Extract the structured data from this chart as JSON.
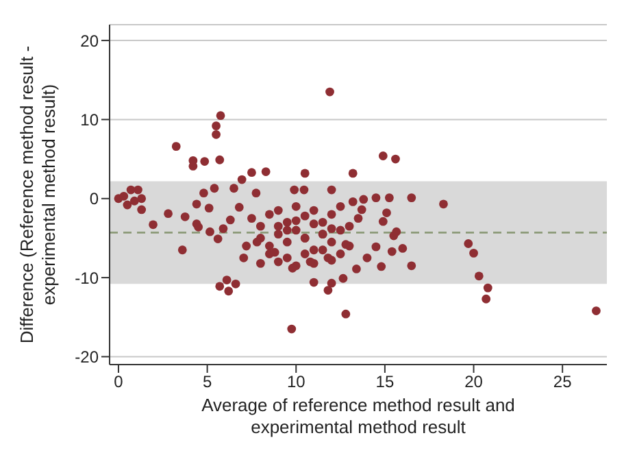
{
  "chart_data": {
    "type": "scatter",
    "xlabel": "Average of reference method result and experimental method result",
    "ylabel": "Difference (Reference method result - experimental method result)",
    "x": [
      11.9,
      5.75,
      5.5,
      5.5,
      3.25,
      4.2,
      4.2,
      4.85,
      5.7,
      7.5,
      8.3,
      10.5,
      13.2,
      6.95,
      6.5,
      5.4,
      4.8,
      14.9,
      15.6,
      0,
      0.7,
      1.1,
      1.3,
      1.3,
      0.5,
      0.9,
      0.3,
      2.8,
      1.95,
      3.75,
      4.4,
      5.1,
      4.4,
      4.5,
      5.15,
      5.6,
      3.6,
      5.7,
      6.1,
      6.2,
      6.6,
      9.75,
      12.8,
      7.75,
      5.9,
      6.3,
      6.8,
      7.05,
      8,
      11,
      11.8,
      12,
      12.65,
      13.4,
      9.9,
      10.45,
      12,
      13.2,
      14.5,
      15.25,
      16.5,
      18.3,
      19.7,
      20,
      20.3,
      20.8,
      20.7,
      26.9,
      16.5,
      14.8,
      16,
      15.4,
      15.1,
      14.9,
      15.5,
      15.65,
      14.5,
      14,
      13.7,
      13.8,
      7.5,
      8,
      8.5,
      9,
      9.5,
      10,
      10.5,
      11,
      11.5,
      12,
      12.5,
      13,
      8,
      8.5,
      9,
      9.5,
      10,
      10.5,
      11,
      11.5,
      12,
      12.5,
      13,
      8.5,
      9,
      9.5,
      10,
      10.5,
      11,
      11.5,
      12,
      12.5,
      9,
      9.5,
      10,
      10.5,
      11,
      11.5,
      12,
      7.2,
      7.8,
      8.8,
      9.8,
      10.8,
      11.8,
      12.8,
      13.5
    ],
    "values": [
      13.5,
      10.5,
      9.2,
      8.1,
      6.6,
      4.8,
      4.1,
      4.7,
      4.9,
      3.3,
      3.4,
      3.2,
      3.2,
      2.4,
      1.3,
      1.3,
      0.7,
      5.4,
      5,
      0,
      1.1,
      1.1,
      0,
      -1.4,
      -0.8,
      -0.3,
      0.3,
      -1.9,
      -3.3,
      -2.3,
      -0.7,
      -1.2,
      -3.2,
      -3.6,
      -4.2,
      -5.1,
      -6.5,
      -11.1,
      -10.3,
      -11.7,
      -10.8,
      -16.5,
      -14.6,
      0.7,
      -3.8,
      -2.7,
      -1.1,
      -7.5,
      -8.2,
      -10.6,
      -11.6,
      -10.7,
      -10.1,
      -8.9,
      1.1,
      1.1,
      1.1,
      -0.4,
      0.1,
      0.1,
      0.1,
      -0.7,
      -5.7,
      -6.9,
      -9.8,
      -11.3,
      -12.7,
      -14.2,
      -8.5,
      -8.6,
      -6.3,
      -6.7,
      -1.8,
      -2.9,
      -4.7,
      -4.2,
      -6.1,
      -7.5,
      -1.4,
      -0.1,
      -2.5,
      -3.5,
      -2,
      -1.5,
      -3,
      -1,
      -2.2,
      -1.5,
      -3,
      -2,
      -1,
      -3.5,
      -5,
      -6,
      -4.5,
      -5.5,
      -4,
      -5,
      -6.5,
      -4.5,
      -5.5,
      -4,
      -6,
      -7,
      -8,
      -7.5,
      -8.5,
      -7,
      -8.2,
      -6.5,
      -7.8,
      -7,
      -3.5,
      -4,
      -2.8,
      -5,
      -3.2,
      -4.5,
      -3.8,
      -6,
      -5.5,
      -6.8,
      -8.8,
      -8,
      -7.5,
      -5.8,
      -2.5
    ],
    "color": "#8f2e33",
    "marker": "circle",
    "xlim": [
      -0.5,
      27.5
    ],
    "xticks": [
      0,
      5,
      10,
      15,
      20,
      25
    ],
    "ylim": [
      -21,
      22
    ],
    "yticks": [
      -20,
      -10,
      0,
      10,
      20
    ],
    "grid": "y",
    "bands": [
      {
        "axis": "y",
        "from": -10.8,
        "to": 2.2,
        "color": "#d9d9d9"
      }
    ],
    "ref_lines": [
      {
        "axis": "y",
        "value": -4.3,
        "color": "#8c9a78",
        "line_style": "dashed"
      }
    ]
  }
}
